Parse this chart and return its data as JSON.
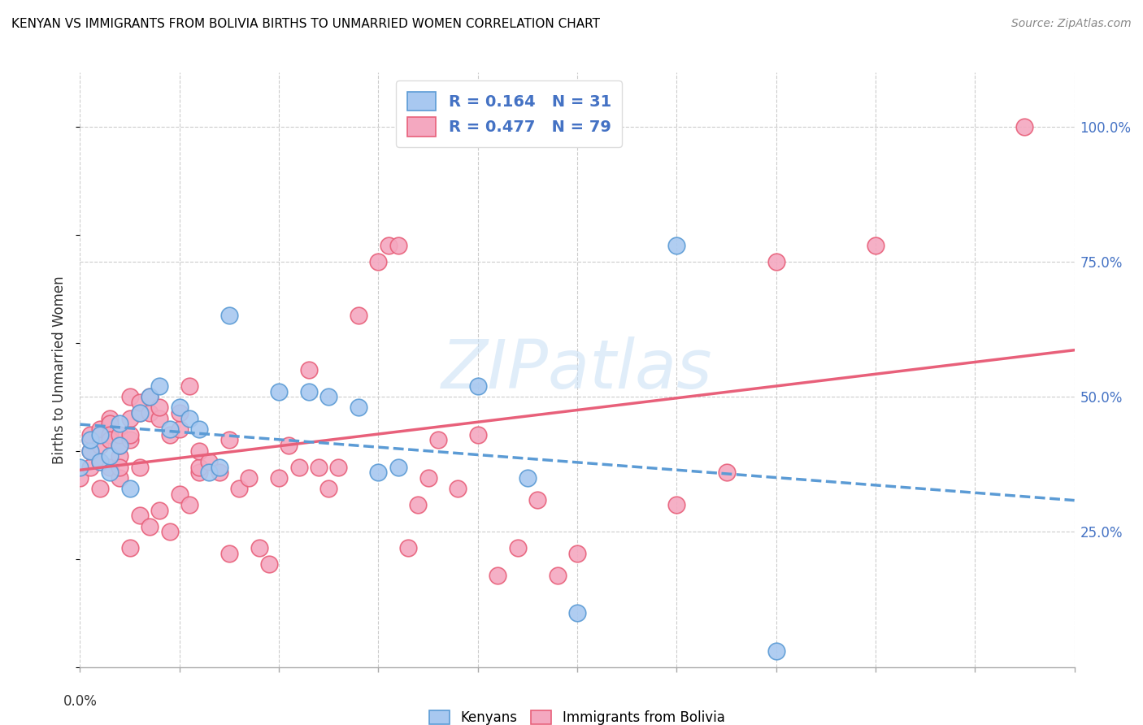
{
  "title": "KENYAN VS IMMIGRANTS FROM BOLIVIA BIRTHS TO UNMARRIED WOMEN CORRELATION CHART",
  "source": "Source: ZipAtlas.com",
  "ylabel": "Births to Unmarried Women",
  "ytick_labels": [
    "25.0%",
    "50.0%",
    "75.0%",
    "100.0%"
  ],
  "ytick_positions": [
    0.25,
    0.5,
    0.75,
    1.0
  ],
  "xlim": [
    0.0,
    0.1
  ],
  "ylim": [
    0.0,
    1.1
  ],
  "legend_r_kenyan": "R = 0.164",
  "legend_n_kenyan": "N = 31",
  "legend_r_bolivia": "R = 0.477",
  "legend_n_bolivia": "N = 79",
  "kenyan_color": "#A8C8F0",
  "bolivia_color": "#F4A8C0",
  "kenyan_color_line": "#5B9BD5",
  "bolivia_color_line": "#E8607A",
  "watermark": "ZIPatlas",
  "kenyan_points_x": [
    0.0,
    0.001,
    0.001,
    0.002,
    0.002,
    0.003,
    0.003,
    0.004,
    0.004,
    0.005,
    0.006,
    0.007,
    0.008,
    0.009,
    0.01,
    0.011,
    0.012,
    0.013,
    0.014,
    0.015,
    0.02,
    0.023,
    0.025,
    0.028,
    0.03,
    0.032,
    0.04,
    0.045,
    0.05,
    0.06,
    0.07
  ],
  "kenyan_points_y": [
    0.37,
    0.4,
    0.42,
    0.38,
    0.43,
    0.36,
    0.39,
    0.41,
    0.45,
    0.33,
    0.47,
    0.5,
    0.52,
    0.44,
    0.48,
    0.46,
    0.44,
    0.36,
    0.37,
    0.65,
    0.51,
    0.51,
    0.5,
    0.48,
    0.36,
    0.37,
    0.52,
    0.35,
    0.1,
    0.78,
    0.03
  ],
  "bolivia_points_x": [
    0.0,
    0.001,
    0.001,
    0.001,
    0.001,
    0.002,
    0.002,
    0.002,
    0.002,
    0.003,
    0.003,
    0.003,
    0.003,
    0.003,
    0.004,
    0.004,
    0.004,
    0.004,
    0.004,
    0.005,
    0.005,
    0.005,
    0.005,
    0.005,
    0.006,
    0.006,
    0.006,
    0.006,
    0.007,
    0.007,
    0.007,
    0.008,
    0.008,
    0.008,
    0.009,
    0.009,
    0.01,
    0.01,
    0.01,
    0.011,
    0.011,
    0.012,
    0.012,
    0.012,
    0.013,
    0.014,
    0.015,
    0.015,
    0.016,
    0.017,
    0.018,
    0.019,
    0.02,
    0.021,
    0.022,
    0.023,
    0.024,
    0.025,
    0.026,
    0.028,
    0.03,
    0.031,
    0.032,
    0.033,
    0.034,
    0.035,
    0.036,
    0.038,
    0.04,
    0.042,
    0.044,
    0.046,
    0.048,
    0.05,
    0.06,
    0.065,
    0.07,
    0.08,
    0.095
  ],
  "bolivia_points_y": [
    0.35,
    0.4,
    0.37,
    0.42,
    0.43,
    0.44,
    0.41,
    0.38,
    0.33,
    0.46,
    0.45,
    0.43,
    0.37,
    0.42,
    0.39,
    0.41,
    0.43,
    0.35,
    0.37,
    0.5,
    0.42,
    0.46,
    0.43,
    0.22,
    0.47,
    0.49,
    0.28,
    0.37,
    0.47,
    0.5,
    0.26,
    0.46,
    0.48,
    0.29,
    0.43,
    0.25,
    0.44,
    0.32,
    0.47,
    0.52,
    0.3,
    0.36,
    0.37,
    0.4,
    0.38,
    0.36,
    0.42,
    0.21,
    0.33,
    0.35,
    0.22,
    0.19,
    0.35,
    0.41,
    0.37,
    0.55,
    0.37,
    0.33,
    0.37,
    0.65,
    0.75,
    0.78,
    0.78,
    0.22,
    0.3,
    0.35,
    0.42,
    0.33,
    0.43,
    0.17,
    0.22,
    0.31,
    0.17,
    0.21,
    0.3,
    0.36,
    0.75,
    0.78,
    1.0
  ]
}
